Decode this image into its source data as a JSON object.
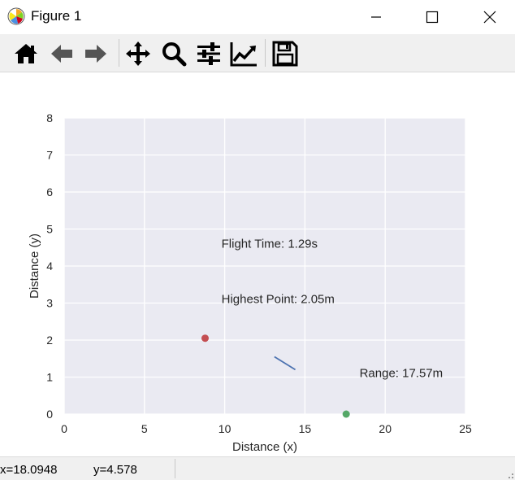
{
  "window": {
    "title": "Figure 1",
    "controls": {
      "minimize": "minimize-icon",
      "maximize": "maximize-icon",
      "close": "close-icon"
    }
  },
  "toolbar": {
    "buttons": [
      {
        "name": "home",
        "icon": "home-icon"
      },
      {
        "name": "back",
        "icon": "arrow-left-icon"
      },
      {
        "name": "forward",
        "icon": "arrow-right-icon"
      },
      {
        "name": "pan",
        "icon": "move-icon"
      },
      {
        "name": "zoom",
        "icon": "magnifier-icon"
      },
      {
        "name": "configure-subplots",
        "icon": "sliders-icon"
      },
      {
        "name": "edit-axes",
        "icon": "line-chart-icon"
      },
      {
        "name": "save",
        "icon": "floppy-disk-icon"
      }
    ]
  },
  "chart_data": {
    "type": "scatter",
    "title": "",
    "xlabel": "Distance (x)",
    "ylabel": "Distance (y)",
    "xlim": [
      0,
      25
    ],
    "ylim": [
      0,
      8
    ],
    "xticks": [
      "0",
      "5",
      "10",
      "15",
      "20",
      "25"
    ],
    "yticks": [
      "0",
      "1",
      "2",
      "3",
      "4",
      "5",
      "6",
      "7",
      "8"
    ],
    "grid": true,
    "background": "#eaeaf2",
    "series": [
      {
        "kind": "line",
        "color": "#4c72b0",
        "x": [
          13.1,
          14.4
        ],
        "y": [
          1.55,
          1.2
        ]
      },
      {
        "kind": "point",
        "color": "#c44e52",
        "x": [
          8.78
        ],
        "y": [
          2.05
        ]
      },
      {
        "kind": "point",
        "color": "#55a868",
        "x": [
          17.57
        ],
        "y": [
          0
        ]
      }
    ],
    "annotations": [
      {
        "text": "Flight Time: 1.29s",
        "x": 9.8,
        "y": 4.5
      },
      {
        "text": "Highest Point: 2.05m",
        "x": 9.8,
        "y": 3.0
      },
      {
        "text": "Range: 17.57m",
        "x": 18.4,
        "y": 1.0
      }
    ]
  },
  "status": {
    "x_readout": "x=18.0948",
    "y_readout": "y=4.578"
  }
}
